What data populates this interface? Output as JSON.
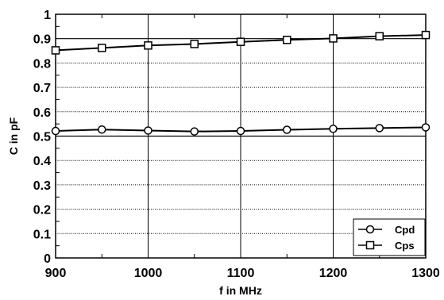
{
  "chart_data": {
    "type": "line",
    "xlabel": "f in MHz",
    "ylabel": "C in pF",
    "xlim": [
      900,
      1300
    ],
    "ylim": [
      0,
      1
    ],
    "x_ticks": [
      "900",
      "1000",
      "1100",
      "1200",
      "1300"
    ],
    "y_ticks": [
      "0",
      "0.1",
      "0.2",
      "0.3",
      "0.4",
      "0.5",
      "0.6",
      "0.7",
      "0.8",
      "0.9",
      "1"
    ],
    "grid": true,
    "legend_position": "bottom-right",
    "x": [
      900,
      950,
      1000,
      1050,
      1100,
      1150,
      1200,
      1250,
      1300
    ],
    "series": [
      {
        "name": "Cpd",
        "marker": "circle",
        "values": [
          0.521,
          0.527,
          0.523,
          0.519,
          0.521,
          0.526,
          0.53,
          0.533,
          0.536
        ]
      },
      {
        "name": "Cps",
        "marker": "square",
        "values": [
          0.852,
          0.862,
          0.872,
          0.878,
          0.887,
          0.895,
          0.901,
          0.91,
          0.915
        ]
      }
    ]
  }
}
